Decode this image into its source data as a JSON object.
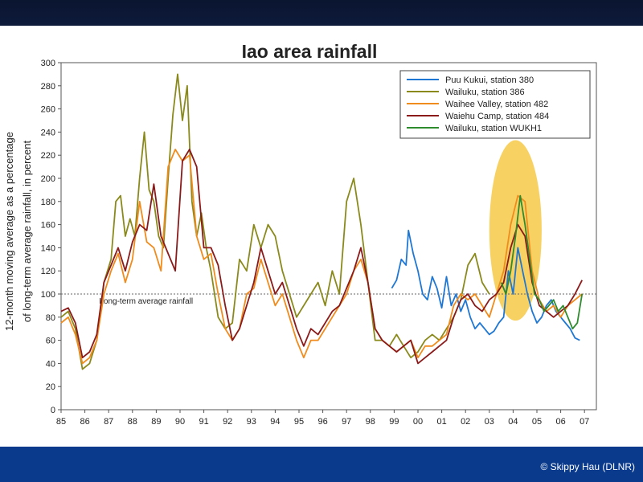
{
  "footer": {
    "credit": "© Skippy Hau (DLNR)"
  },
  "chart_data": {
    "type": "line",
    "title": "Iao area rainfall",
    "ylabel_line1": "12-month moving average as a percentage",
    "ylabel_line2": "of long-term average rainfall, in percent",
    "xlabel": "",
    "ylim": [
      0,
      300
    ],
    "xlim": [
      0,
      22.5
    ],
    "y_ticks": [
      0,
      20,
      40,
      60,
      80,
      100,
      120,
      140,
      160,
      180,
      200,
      220,
      240,
      260,
      280,
      300
    ],
    "x_ticks": [
      "85",
      "86",
      "87",
      "88",
      "89",
      "90",
      "91",
      "92",
      "93",
      "94",
      "95",
      "96",
      "97",
      "98",
      "99",
      "00",
      "01",
      "02",
      "03",
      "04",
      "05",
      "06",
      "07"
    ],
    "reference_line": {
      "value": 100,
      "label": "Long-term average rainfall"
    },
    "highlight": {
      "x_center": 19.1,
      "y_center": 155,
      "x_radius": 1.1,
      "y_radius": 78,
      "color": "#f7c948"
    },
    "legend_position": "top-right",
    "series": [
      {
        "name": "Puu Kukui, station 380",
        "color": "#1f77d4",
        "x": [
          13.9,
          14.1,
          14.3,
          14.5,
          14.6,
          14.8,
          15.0,
          15.2,
          15.4,
          15.6,
          15.8,
          16.0,
          16.2,
          16.4,
          16.6,
          16.8,
          17.0,
          17.2,
          17.4,
          17.6,
          17.8,
          18.0,
          18.2,
          18.4,
          18.6,
          18.8,
          19.0,
          19.2,
          19.4,
          19.6,
          19.8,
          20.0,
          20.2,
          20.4,
          20.6,
          20.8,
          21.0,
          21.2,
          21.4,
          21.6,
          21.8
        ],
        "values": [
          105,
          112,
          130,
          125,
          155,
          135,
          120,
          100,
          95,
          115,
          105,
          88,
          115,
          90,
          100,
          85,
          95,
          80,
          70,
          75,
          70,
          65,
          68,
          75,
          80,
          120,
          100,
          140,
          120,
          100,
          85,
          75,
          80,
          90,
          95,
          85,
          80,
          75,
          70,
          62,
          60
        ]
      },
      {
        "name": "Wailuku, station 386",
        "color": "#8a8a1c",
        "x": [
          0.0,
          0.3,
          0.6,
          0.9,
          1.2,
          1.5,
          1.8,
          2.1,
          2.3,
          2.5,
          2.7,
          2.9,
          3.1,
          3.3,
          3.5,
          3.7,
          3.9,
          4.1,
          4.3,
          4.5,
          4.7,
          4.9,
          5.1,
          5.3,
          5.5,
          5.7,
          5.9,
          6.1,
          6.3,
          6.6,
          6.9,
          7.2,
          7.5,
          7.8,
          8.1,
          8.4,
          8.7,
          9.0,
          9.3,
          9.6,
          9.9,
          10.2,
          10.5,
          10.8,
          11.1,
          11.4,
          11.7,
          12.0,
          12.3,
          12.6,
          12.9,
          13.2,
          13.5,
          13.8,
          14.1,
          14.4,
          14.7,
          15.0,
          15.3,
          15.6,
          15.9,
          16.2,
          16.5,
          16.8,
          17.1,
          17.4,
          17.7,
          18.0
        ],
        "values": [
          80,
          85,
          70,
          35,
          40,
          60,
          110,
          130,
          180,
          185,
          150,
          165,
          150,
          200,
          240,
          190,
          180,
          150,
          140,
          200,
          255,
          290,
          250,
          280,
          180,
          150,
          170,
          140,
          120,
          80,
          70,
          75,
          130,
          120,
          160,
          140,
          160,
          150,
          120,
          100,
          80,
          90,
          100,
          110,
          90,
          120,
          100,
          180,
          200,
          160,
          110,
          60,
          60,
          55,
          65,
          55,
          45,
          50,
          60,
          65,
          60,
          70,
          80,
          95,
          125,
          135,
          110,
          100
        ]
      },
      {
        "name": "Waihee Valley, station 482",
        "color": "#f08c1e",
        "x": [
          0.0,
          0.3,
          0.6,
          0.9,
          1.2,
          1.5,
          1.8,
          2.1,
          2.4,
          2.7,
          3.0,
          3.3,
          3.6,
          3.9,
          4.2,
          4.5,
          4.8,
          5.1,
          5.4,
          5.7,
          6.0,
          6.3,
          6.6,
          6.9,
          7.2,
          7.5,
          7.8,
          8.1,
          8.4,
          8.7,
          9.0,
          9.3,
          9.6,
          9.9,
          10.2,
          10.5,
          10.8,
          11.1,
          11.4,
          11.7,
          12.0,
          12.3,
          12.6,
          12.9,
          13.2,
          13.5,
          13.8,
          14.1,
          14.4,
          14.7,
          15.0,
          15.3,
          15.6,
          15.9,
          16.2,
          16.5,
          16.8,
          17.1,
          17.4,
          17.7,
          18.0,
          18.3,
          18.6,
          18.9,
          19.2,
          19.5,
          19.8,
          20.1,
          20.4,
          20.7,
          21.0,
          21.3,
          21.6,
          21.9
        ],
        "values": [
          75,
          80,
          65,
          40,
          45,
          60,
          100,
          120,
          135,
          110,
          130,
          180,
          145,
          140,
          120,
          210,
          225,
          215,
          220,
          150,
          130,
          135,
          100,
          70,
          60,
          70,
          100,
          105,
          130,
          110,
          90,
          100,
          80,
          60,
          45,
          60,
          60,
          70,
          80,
          90,
          100,
          120,
          130,
          110,
          70,
          60,
          55,
          50,
          55,
          60,
          45,
          55,
          55,
          60,
          65,
          90,
          100,
          95,
          100,
          90,
          80,
          100,
          120,
          160,
          185,
          180,
          120,
          95,
          85,
          90,
          80,
          90,
          95,
          100
        ]
      },
      {
        "name": "Waiehu Camp, station 484",
        "color": "#8b1a1a",
        "x": [
          0.0,
          0.3,
          0.6,
          0.9,
          1.2,
          1.5,
          1.8,
          2.1,
          2.4,
          2.7,
          3.0,
          3.3,
          3.6,
          3.9,
          4.2,
          4.5,
          4.8,
          5.1,
          5.4,
          5.7,
          6.0,
          6.3,
          6.6,
          6.9,
          7.2,
          7.5,
          7.8,
          8.1,
          8.4,
          8.7,
          9.0,
          9.3,
          9.6,
          9.9,
          10.2,
          10.5,
          10.8,
          11.1,
          11.4,
          11.7,
          12.0,
          12.3,
          12.6,
          12.9,
          13.2,
          13.5,
          13.8,
          14.1,
          14.4,
          14.7,
          15.0,
          15.3,
          15.6,
          15.9,
          16.2,
          16.5,
          16.8,
          17.1,
          17.4,
          17.7,
          18.0,
          18.3,
          18.6,
          18.9,
          19.2,
          19.5,
          19.8,
          20.1,
          20.4,
          20.7,
          21.0,
          21.3,
          21.6,
          21.9
        ],
        "values": [
          85,
          88,
          75,
          45,
          50,
          65,
          110,
          125,
          140,
          120,
          145,
          160,
          155,
          195,
          150,
          135,
          120,
          215,
          225,
          210,
          140,
          140,
          125,
          90,
          60,
          70,
          90,
          110,
          140,
          120,
          100,
          110,
          90,
          70,
          55,
          70,
          65,
          75,
          85,
          90,
          105,
          120,
          140,
          110,
          70,
          60,
          55,
          50,
          55,
          60,
          40,
          45,
          50,
          55,
          60,
          80,
          95,
          100,
          90,
          85,
          95,
          100,
          110,
          140,
          160,
          150,
          110,
          90,
          85,
          80,
          85,
          90,
          100,
          112
        ]
      },
      {
        "name": "Wailuku, station WUKH1",
        "color": "#2e8b2e",
        "x": [
          18.5,
          18.7,
          18.9,
          19.1,
          19.3,
          19.5,
          19.7,
          19.9,
          20.1,
          20.3,
          20.5,
          20.7,
          20.9,
          21.1,
          21.3,
          21.5,
          21.7,
          21.9
        ],
        "values": [
          110,
          100,
          120,
          150,
          185,
          160,
          130,
          100,
          95,
          85,
          90,
          95,
          85,
          90,
          80,
          70,
          75,
          100
        ]
      }
    ]
  }
}
